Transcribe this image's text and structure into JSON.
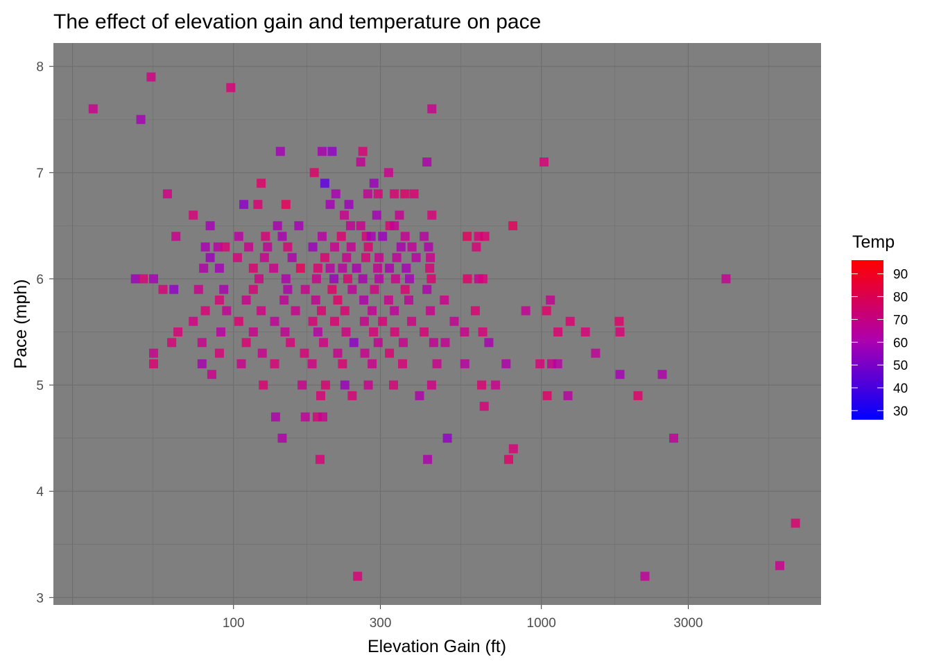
{
  "chart_data": {
    "type": "scatter",
    "title": "The effect of elevation gain and temperature on pace",
    "xlabel": "Elevation Gain (ft)",
    "ylabel": "Pace (mph)",
    "x_scale": "log10",
    "xlim": [
      26,
      8100
    ],
    "ylim": [
      2.93,
      8.22
    ],
    "x_ticks": [
      100,
      300,
      1000,
      3000
    ],
    "x_tick_labels": [
      "100",
      "300",
      "1000",
      "3000"
    ],
    "y_ticks": [
      3,
      4,
      5,
      6,
      7,
      8
    ],
    "y_tick_labels": [
      "3",
      "4",
      "5",
      "6",
      "7",
      "8"
    ],
    "grid": true,
    "panel_background": "#7f7f7f",
    "grid_color": "#6e6e6e",
    "marker": "square",
    "legend": {
      "title": "Temp",
      "position": "right",
      "type": "colorbar",
      "range": [
        26,
        96
      ],
      "low_color": "#0000ff",
      "high_color": "#ff0000",
      "ticks": [
        30,
        40,
        50,
        60,
        70,
        80,
        90
      ],
      "tick_labels": [
        "30",
        "40",
        "50",
        "60",
        "70",
        "80",
        "90"
      ]
    },
    "columns": [
      "elevation_gain",
      "pace",
      "temp"
    ],
    "points": [
      [
        35,
        7.6,
        72
      ],
      [
        54,
        7.9,
        75
      ],
      [
        50,
        7.5,
        58
      ],
      [
        98,
        7.8,
        78
      ],
      [
        142,
        7.2,
        58
      ],
      [
        194,
        7.2,
        60
      ],
      [
        209,
        7.2,
        52
      ],
      [
        263,
        7.2,
        78
      ],
      [
        441,
        7.6,
        72
      ],
      [
        1020,
        7.1,
        78
      ],
      [
        183,
        7.0,
        82
      ],
      [
        259,
        7.1,
        70
      ],
      [
        319,
        7.0,
        72
      ],
      [
        425,
        7.1,
        62
      ],
      [
        61,
        6.8,
        75
      ],
      [
        123,
        6.9,
        82
      ],
      [
        108,
        6.7,
        50
      ],
      [
        198,
        6.9,
        38
      ],
      [
        215,
        6.8,
        60
      ],
      [
        286,
        6.9,
        55
      ],
      [
        273,
        6.8,
        70
      ],
      [
        295,
        6.8,
        78
      ],
      [
        120,
        6.7,
        80
      ],
      [
        148,
        6.7,
        85
      ],
      [
        206,
        6.7,
        58
      ],
      [
        237,
        6.7,
        56
      ],
      [
        333,
        6.8,
        80
      ],
      [
        360,
        6.8,
        82
      ],
      [
        386,
        6.8,
        80
      ],
      [
        74,
        6.6,
        78
      ],
      [
        229,
        6.6,
        72
      ],
      [
        292,
        6.6,
        58
      ],
      [
        346,
        6.6,
        70
      ],
      [
        441,
        6.6,
        78
      ],
      [
        65,
        6.4,
        72
      ],
      [
        84,
        6.5,
        58
      ],
      [
        139,
        6.5,
        60
      ],
      [
        163,
        6.5,
        58
      ],
      [
        240,
        6.5,
        70
      ],
      [
        259,
        6.5,
        72
      ],
      [
        322,
        6.5,
        80
      ],
      [
        333,
        6.5,
        70
      ],
      [
        808,
        6.5,
        85
      ],
      [
        104,
        6.4,
        65
      ],
      [
        127,
        6.4,
        78
      ],
      [
        144,
        6.4,
        60
      ],
      [
        194,
        6.4,
        65
      ],
      [
        224,
        6.4,
        80
      ],
      [
        270,
        6.4,
        78
      ],
      [
        280,
        6.4,
        58
      ],
      [
        305,
        6.4,
        55
      ],
      [
        361,
        6.4,
        70
      ],
      [
        416,
        6.4,
        65
      ],
      [
        574,
        6.4,
        85
      ],
      [
        625,
        6.4,
        78
      ],
      [
        655,
        6.4,
        80
      ],
      [
        81,
        6.3,
        60
      ],
      [
        89,
        6.3,
        65
      ],
      [
        94,
        6.3,
        78
      ],
      [
        112,
        6.3,
        72
      ],
      [
        129,
        6.3,
        68
      ],
      [
        150,
        6.3,
        78
      ],
      [
        181,
        6.3,
        55
      ],
      [
        213,
        6.3,
        72
      ],
      [
        241,
        6.3,
        70
      ],
      [
        274,
        6.3,
        80
      ],
      [
        350,
        6.3,
        60
      ],
      [
        380,
        6.3,
        68
      ],
      [
        430,
        6.3,
        62
      ],
      [
        615,
        6.3,
        78
      ],
      [
        84,
        6.2,
        55
      ],
      [
        103,
        6.2,
        78
      ],
      [
        126,
        6.2,
        72
      ],
      [
        155,
        6.2,
        62
      ],
      [
        198,
        6.2,
        80
      ],
      [
        233,
        6.2,
        72
      ],
      [
        269,
        6.2,
        78
      ],
      [
        297,
        6.2,
        72
      ],
      [
        339,
        6.2,
        68
      ],
      [
        392,
        6.2,
        65
      ],
      [
        436,
        6.2,
        72
      ],
      [
        80,
        6.1,
        62
      ],
      [
        90,
        6.1,
        58
      ],
      [
        116,
        6.1,
        80
      ],
      [
        135,
        6.1,
        72
      ],
      [
        165,
        6.1,
        85
      ],
      [
        188,
        6.1,
        80
      ],
      [
        206,
        6.1,
        65
      ],
      [
        226,
        6.1,
        65
      ],
      [
        251,
        6.1,
        60
      ],
      [
        294,
        6.1,
        70
      ],
      [
        321,
        6.1,
        60
      ],
      [
        364,
        6.1,
        58
      ],
      [
        434,
        6.1,
        78
      ],
      [
        121,
        6.0,
        75
      ],
      [
        148,
        6.0,
        62
      ],
      [
        186,
        6.0,
        72
      ],
      [
        212,
        6.0,
        55
      ],
      [
        235,
        6.0,
        80
      ],
      [
        263,
        6.0,
        60
      ],
      [
        297,
        6.0,
        65
      ],
      [
        336,
        6.0,
        72
      ],
      [
        373,
        6.0,
        58
      ],
      [
        439,
        6.0,
        80
      ],
      [
        575,
        6.0,
        82
      ],
      [
        626,
        6.0,
        70
      ],
      [
        646,
        6.0,
        78
      ],
      [
        55,
        6.0,
        58
      ],
      [
        48,
        6.0,
        55
      ],
      [
        51,
        6.0,
        78
      ],
      [
        59,
        5.9,
        78
      ],
      [
        64,
        5.9,
        52
      ],
      [
        77,
        5.9,
        72
      ],
      [
        93,
        5.9,
        60
      ],
      [
        116,
        5.9,
        78
      ],
      [
        150,
        5.9,
        62
      ],
      [
        171,
        5.9,
        72
      ],
      [
        209,
        5.9,
        82
      ],
      [
        243,
        5.9,
        68
      ],
      [
        287,
        5.9,
        75
      ],
      [
        361,
        5.9,
        80
      ],
      [
        425,
        5.9,
        62
      ],
      [
        1070,
        5.8,
        70
      ],
      [
        90,
        5.8,
        78
      ],
      [
        110,
        5.8,
        72
      ],
      [
        146,
        5.8,
        68
      ],
      [
        185,
        5.8,
        70
      ],
      [
        218,
        5.8,
        82
      ],
      [
        265,
        5.8,
        62
      ],
      [
        319,
        5.8,
        72
      ],
      [
        371,
        5.8,
        68
      ],
      [
        484,
        5.8,
        72
      ],
      [
        81,
        5.7,
        78
      ],
      [
        95,
        5.7,
        70
      ],
      [
        123,
        5.7,
        75
      ],
      [
        159,
        5.7,
        72
      ],
      [
        193,
        5.7,
        80
      ],
      [
        230,
        5.7,
        80
      ],
      [
        282,
        5.7,
        70
      ],
      [
        333,
        5.7,
        68
      ],
      [
        436,
        5.7,
        72
      ],
      [
        610,
        5.7,
        80
      ],
      [
        890,
        5.7,
        70
      ],
      [
        1040,
        5.7,
        82
      ],
      [
        74,
        5.6,
        75
      ],
      [
        104,
        5.6,
        80
      ],
      [
        136,
        5.6,
        68
      ],
      [
        181,
        5.6,
        78
      ],
      [
        213,
        5.6,
        80
      ],
      [
        266,
        5.6,
        72
      ],
      [
        305,
        5.6,
        78
      ],
      [
        379,
        5.6,
        75
      ],
      [
        521,
        5.6,
        70
      ],
      [
        1240,
        5.6,
        80
      ],
      [
        1790,
        5.6,
        82
      ],
      [
        66,
        5.5,
        78
      ],
      [
        91,
        5.5,
        65
      ],
      [
        116,
        5.5,
        72
      ],
      [
        147,
        5.5,
        70
      ],
      [
        188,
        5.5,
        65
      ],
      [
        232,
        5.5,
        75
      ],
      [
        285,
        5.5,
        78
      ],
      [
        334,
        5.5,
        78
      ],
      [
        416,
        5.5,
        78
      ],
      [
        563,
        5.5,
        72
      ],
      [
        645,
        5.5,
        78
      ],
      [
        1132,
        5.5,
        80
      ],
      [
        1390,
        5.5,
        78
      ],
      [
        1800,
        5.5,
        78
      ],
      [
        63,
        5.4,
        78
      ],
      [
        79,
        5.4,
        72
      ],
      [
        110,
        5.4,
        80
      ],
      [
        153,
        5.4,
        78
      ],
      [
        196,
        5.4,
        75
      ],
      [
        246,
        5.4,
        50
      ],
      [
        295,
        5.4,
        70
      ],
      [
        356,
        5.4,
        72
      ],
      [
        447,
        5.4,
        70
      ],
      [
        487,
        5.4,
        70
      ],
      [
        675,
        5.4,
        60
      ],
      [
        55,
        5.3,
        72
      ],
      [
        90,
        5.3,
        78
      ],
      [
        124,
        5.3,
        72
      ],
      [
        170,
        5.3,
        78
      ],
      [
        218,
        5.3,
        72
      ],
      [
        267,
        5.3,
        72
      ],
      [
        321,
        5.3,
        80
      ],
      [
        1500,
        5.3,
        68
      ],
      [
        55,
        5.2,
        80
      ],
      [
        79,
        5.2,
        60
      ],
      [
        106,
        5.2,
        72
      ],
      [
        136,
        5.2,
        78
      ],
      [
        180,
        5.2,
        75
      ],
      [
        226,
        5.2,
        80
      ],
      [
        282,
        5.2,
        72
      ],
      [
        354,
        5.2,
        78
      ],
      [
        458,
        5.2,
        72
      ],
      [
        564,
        5.2,
        65
      ],
      [
        768,
        5.2,
        62
      ],
      [
        990,
        5.2,
        78
      ],
      [
        1080,
        5.2,
        72
      ],
      [
        1130,
        5.2,
        65
      ],
      [
        85,
        5.1,
        72
      ],
      [
        1800,
        5.1,
        58
      ],
      [
        2470,
        5.1,
        62
      ],
      [
        125,
        5.0,
        80
      ],
      [
        167,
        5.0,
        72
      ],
      [
        199,
        5.0,
        80
      ],
      [
        230,
        5.0,
        55
      ],
      [
        274,
        5.0,
        72
      ],
      [
        331,
        5.0,
        78
      ],
      [
        440,
        5.0,
        75
      ],
      [
        640,
        5.0,
        80
      ],
      [
        710,
        5.0,
        72
      ],
      [
        192,
        4.9,
        78
      ],
      [
        243,
        4.9,
        78
      ],
      [
        402,
        4.9,
        62
      ],
      [
        1044,
        4.9,
        82
      ],
      [
        1220,
        4.9,
        65
      ],
      [
        2060,
        4.9,
        82
      ],
      [
        652,
        4.8,
        78
      ],
      [
        137,
        4.7,
        62
      ],
      [
        171,
        4.7,
        68
      ],
      [
        187,
        4.7,
        78
      ],
      [
        195,
        4.7,
        72
      ],
      [
        144,
        4.5,
        62
      ],
      [
        495,
        4.5,
        52
      ],
      [
        2690,
        4.5,
        68
      ],
      [
        811,
        4.4,
        78
      ],
      [
        783,
        4.3,
        82
      ],
      [
        191,
        4.3,
        78
      ],
      [
        427,
        4.3,
        62
      ],
      [
        6690,
        3.7,
        80
      ],
      [
        5950,
        3.3,
        72
      ],
      [
        2170,
        3.2,
        68
      ],
      [
        253,
        3.2,
        78
      ],
      [
        3980,
        6.0,
        70
      ]
    ]
  }
}
